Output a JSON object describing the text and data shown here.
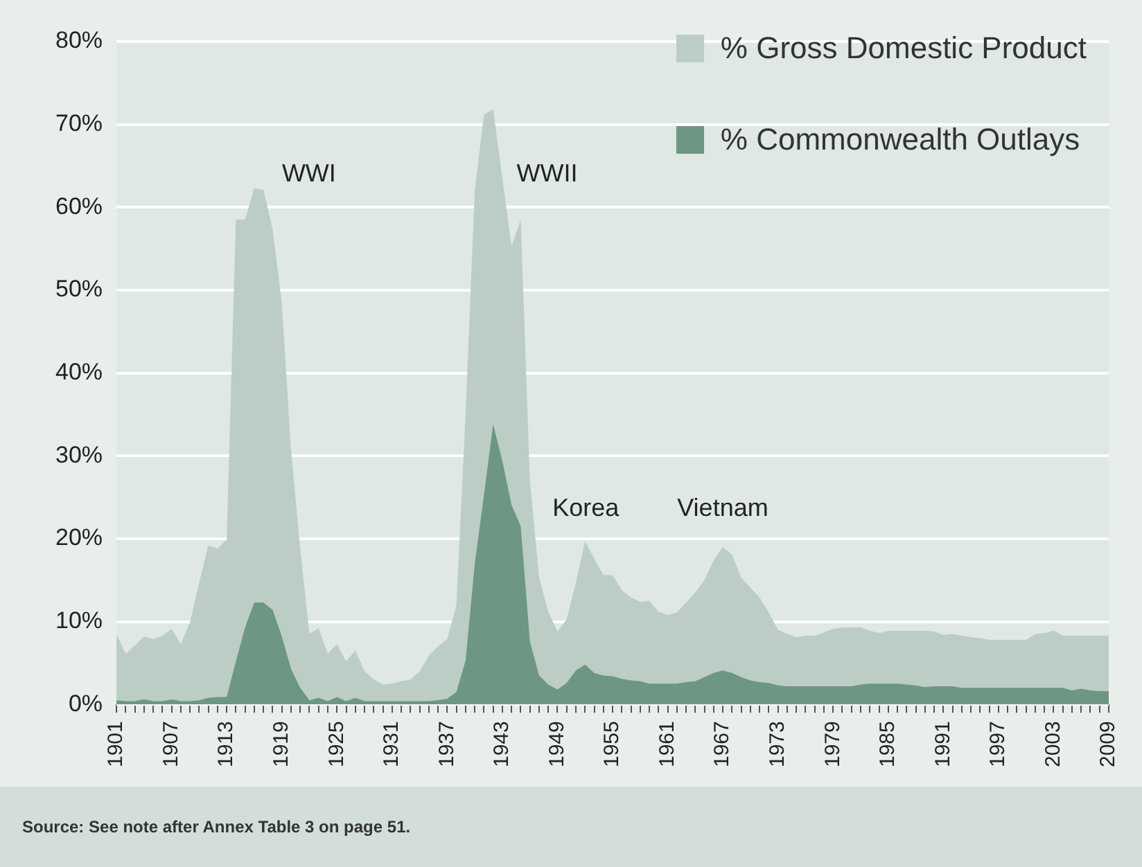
{
  "chart_data": {
    "type": "area",
    "x": [
      1901,
      1902,
      1903,
      1904,
      1905,
      1906,
      1907,
      1908,
      1909,
      1910,
      1911,
      1912,
      1913,
      1914,
      1915,
      1916,
      1917,
      1918,
      1919,
      1920,
      1921,
      1922,
      1923,
      1924,
      1925,
      1926,
      1927,
      1928,
      1929,
      1930,
      1931,
      1932,
      1933,
      1934,
      1935,
      1936,
      1937,
      1938,
      1939,
      1940,
      1941,
      1942,
      1943,
      1944,
      1945,
      1946,
      1947,
      1948,
      1949,
      1950,
      1951,
      1952,
      1953,
      1954,
      1955,
      1956,
      1957,
      1958,
      1959,
      1960,
      1961,
      1962,
      1963,
      1964,
      1965,
      1966,
      1967,
      1968,
      1969,
      1970,
      1971,
      1972,
      1973,
      1974,
      1975,
      1976,
      1977,
      1978,
      1979,
      1980,
      1981,
      1982,
      1983,
      1984,
      1985,
      1986,
      1987,
      1988,
      1989,
      1990,
      1991,
      1992,
      1993,
      1994,
      1995,
      1996,
      1997,
      1998,
      1999,
      2000,
      2001,
      2002,
      2003,
      2004,
      2005,
      2006,
      2007,
      2008,
      2009
    ],
    "series": [
      {
        "name": "% Gross Domestic Product",
        "color": "#bccdc5",
        "values": [
          8.5,
          6.1,
          7.1,
          8.2,
          7.9,
          8.3,
          9.1,
          7.3,
          9.9,
          14.7,
          19.2,
          18.8,
          19.9,
          58.5,
          58.5,
          62.3,
          62.1,
          57.3,
          48.4,
          30.7,
          18.8,
          8.5,
          9.2,
          6.1,
          7.3,
          5.2,
          6.5,
          4.0,
          3.0,
          2.4,
          2.5,
          2.8,
          3.0,
          4.0,
          5.9,
          7.0,
          7.9,
          12,
          35,
          62,
          71.2,
          71.8,
          63.5,
          55.3,
          58.5,
          27,
          15.3,
          11.2,
          8.8,
          10.3,
          14.7,
          19.7,
          17.6,
          15.6,
          15.6,
          13.8,
          12.9,
          12.4,
          12.5,
          11.2,
          10.8,
          11.1,
          12.3,
          13.5,
          15.0,
          17.4,
          19.0,
          18.1,
          15.3,
          14.1,
          12.9,
          11.1,
          9.0,
          8.5,
          8.1,
          8.3,
          8.3,
          8.7,
          9.1,
          9.3,
          9.3,
          9.3,
          8.9,
          8.6,
          8.9,
          8.9,
          8.9,
          8.9,
          8.9,
          8.8,
          8.4,
          8.5,
          8.3,
          8.1,
          8.0,
          7.8,
          7.8,
          7.8,
          7.8,
          7.8,
          8.5,
          8.6,
          8.9,
          8.3,
          8.3,
          8.3,
          8.3,
          8.3,
          8.3
        ]
      },
      {
        "name": "% Commonwealth Outlays",
        "color": "#6e9783",
        "values": [
          0.5,
          0.4,
          0.4,
          0.6,
          0.4,
          0.4,
          0.6,
          0.4,
          0.4,
          0.5,
          0.8,
          0.9,
          0.9,
          5.2,
          9.3,
          12.3,
          12.3,
          11.4,
          8.2,
          4.3,
          2.0,
          0.5,
          0.8,
          0.4,
          0.9,
          0.4,
          0.8,
          0.4,
          0.4,
          0.4,
          0.4,
          0.4,
          0.4,
          0.4,
          0.4,
          0.5,
          0.7,
          1.5,
          5.3,
          17,
          25.3,
          33.8,
          29.4,
          24.1,
          21.5,
          7.6,
          3.5,
          2.4,
          1.8,
          2.6,
          4.1,
          4.8,
          3.8,
          3.5,
          3.4,
          3.1,
          2.9,
          2.8,
          2.5,
          2.5,
          2.5,
          2.5,
          2.7,
          2.8,
          3.3,
          3.8,
          4.1,
          3.8,
          3.3,
          2.9,
          2.7,
          2.6,
          2.3,
          2.2,
          2.2,
          2.2,
          2.2,
          2.2,
          2.2,
          2.2,
          2.2,
          2.4,
          2.5,
          2.5,
          2.5,
          2.5,
          2.4,
          2.3,
          2.1,
          2.2,
          2.2,
          2.2,
          2.0,
          2.0,
          2.0,
          2.0,
          2.0,
          2.0,
          2.0,
          2.0,
          2.0,
          2.0,
          2.0,
          2.0,
          1.7,
          1.9,
          1.7,
          1.6,
          1.6
        ]
      }
    ],
    "xlim": [
      1901,
      2009
    ],
    "xticks": [
      1901,
      {
        "value": 1902,
        "label": null
      },
      {
        "value": 1903,
        "label": null
      },
      {
        "value": 1904,
        "label": null
      },
      {
        "value": 1905,
        "label": null
      },
      {
        "value": 1906,
        "label": null
      },
      1907,
      {
        "value": 1908,
        "label": null
      },
      {
        "value": 1909,
        "label": null
      },
      {
        "value": 1910,
        "label": null
      },
      {
        "value": 1911,
        "label": null
      },
      {
        "value": 1912,
        "label": null
      },
      1913,
      {
        "value": 1914,
        "label": null
      },
      {
        "value": 1915,
        "label": null
      },
      {
        "value": 1916,
        "label": null
      },
      {
        "value": 1917,
        "label": null
      },
      {
        "value": 1918,
        "label": null
      },
      1919,
      {
        "value": 1920,
        "label": null
      },
      {
        "value": 1921,
        "label": null
      },
      {
        "value": 1922,
        "label": null
      },
      {
        "value": 1923,
        "label": null
      },
      {
        "value": 1924,
        "label": null
      },
      1925,
      {
        "value": 1926,
        "label": null
      },
      {
        "value": 1927,
        "label": null
      },
      {
        "value": 1928,
        "label": null
      },
      {
        "value": 1929,
        "label": null
      },
      {
        "value": 1930,
        "label": null
      },
      1931,
      {
        "value": 1932,
        "label": null
      },
      {
        "value": 1933,
        "label": null
      },
      {
        "value": 1934,
        "label": null
      },
      {
        "value": 1935,
        "label": null
      },
      {
        "value": 1936,
        "label": null
      },
      1937,
      {
        "value": 1938,
        "label": null
      },
      {
        "value": 1939,
        "label": null
      },
      {
        "value": 1940,
        "label": null
      },
      {
        "value": 1941,
        "label": null
      },
      {
        "value": 1942,
        "label": null
      },
      1943,
      {
        "value": 1944,
        "label": null
      },
      {
        "value": 1945,
        "label": null
      },
      {
        "value": 1946,
        "label": null
      },
      {
        "value": 1947,
        "label": null
      },
      {
        "value": 1948,
        "label": null
      },
      1949,
      {
        "value": 1950,
        "label": null
      },
      {
        "value": 1951,
        "label": null
      },
      {
        "value": 1952,
        "label": null
      },
      {
        "value": 1953,
        "label": null
      },
      {
        "value": 1954,
        "label": null
      },
      1955,
      {
        "value": 1956,
        "label": null
      },
      {
        "value": 1957,
        "label": null
      },
      {
        "value": 1958,
        "label": null
      },
      {
        "value": 1959,
        "label": null
      },
      {
        "value": 1960,
        "label": null
      },
      1961,
      {
        "value": 1962,
        "label": null
      },
      {
        "value": 1963,
        "label": null
      },
      {
        "value": 1964,
        "label": null
      },
      {
        "value": 1965,
        "label": null
      },
      {
        "value": 1966,
        "label": null
      },
      1967,
      {
        "value": 1968,
        "label": null
      },
      {
        "value": 1969,
        "label": null
      },
      {
        "value": 1970,
        "label": null
      },
      {
        "value": 1971,
        "label": null
      },
      {
        "value": 1972,
        "label": null
      },
      1973,
      {
        "value": 1974,
        "label": null
      },
      {
        "value": 1975,
        "label": null
      },
      {
        "value": 1976,
        "label": null
      },
      {
        "value": 1977,
        "label": null
      },
      {
        "value": 1978,
        "label": null
      },
      1979,
      {
        "value": 1980,
        "label": null
      },
      {
        "value": 1981,
        "label": null
      },
      {
        "value": 1982,
        "label": null
      },
      {
        "value": 1983,
        "label": null
      },
      {
        "value": 1984,
        "label": null
      },
      1985,
      {
        "value": 1986,
        "label": null
      },
      {
        "value": 1987,
        "label": null
      },
      {
        "value": 1988,
        "label": null
      },
      {
        "value": 1989,
        "label": null
      },
      {
        "value": 1990,
        "label": null
      },
      1991,
      {
        "value": 1992,
        "label": null
      },
      {
        "value": 1993,
        "label": null
      },
      {
        "value": 1994,
        "label": null
      },
      {
        "value": 1995,
        "label": null
      },
      {
        "value": 1996,
        "label": null
      },
      1997,
      {
        "value": 1998,
        "label": null
      },
      {
        "value": 1999,
        "label": null
      },
      {
        "value": 2000,
        "label": null
      },
      {
        "value": 2001,
        "label": null
      },
      {
        "value": 2002,
        "label": null
      },
      2003,
      {
        "value": 2004,
        "label": null
      },
      {
        "value": 2005,
        "label": null
      },
      {
        "value": 2006,
        "label": null
      },
      {
        "value": 2007,
        "label": null
      },
      {
        "value": 2008,
        "label": null
      },
      2009
    ],
    "ylim": [
      0,
      80
    ],
    "yticks": [
      {
        "value": 0,
        "label": "0%"
      },
      {
        "value": 10,
        "label": "10%"
      },
      {
        "value": 20,
        "label": "20%"
      },
      {
        "value": 30,
        "label": "30%"
      },
      {
        "value": 40,
        "label": "40%"
      },
      {
        "value": 50,
        "label": "50%"
      },
      {
        "value": 60,
        "label": "60%"
      },
      {
        "value": 70,
        "label": "70%"
      },
      {
        "value": 80,
        "label": "80%"
      }
    ],
    "grid": "y",
    "legend": "top right",
    "annotations": [
      "WWI",
      "WWII",
      "Korea",
      "Vietnam",
      "Source: See note after Annex Table 3 on page 51."
    ]
  }
}
